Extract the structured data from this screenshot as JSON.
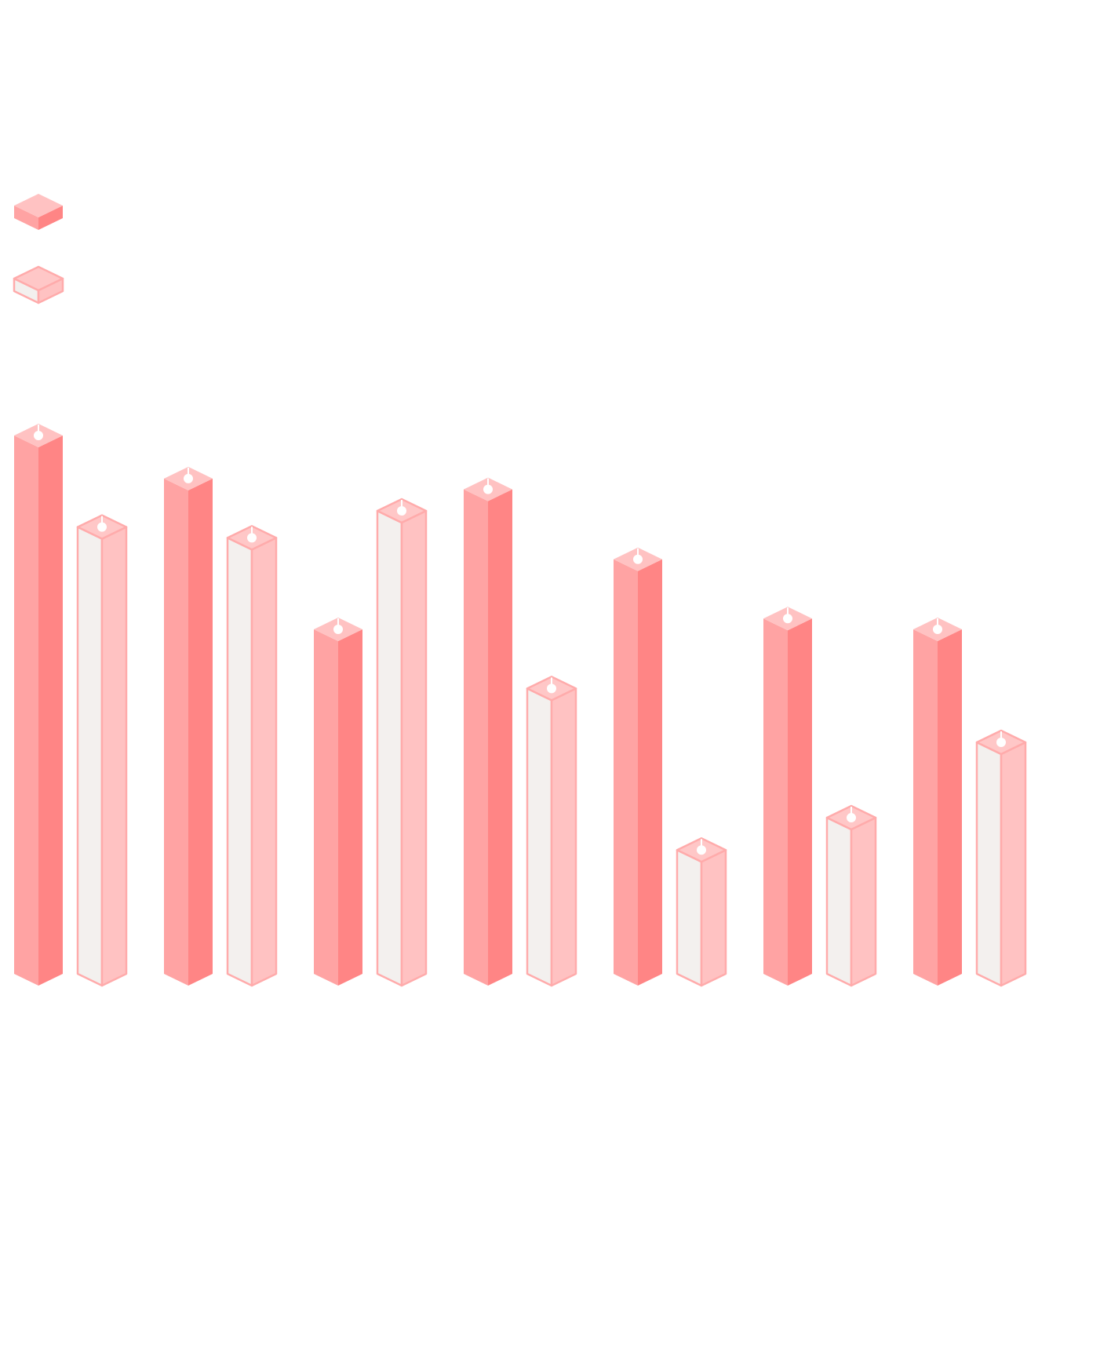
{
  "chart_data": {
    "type": "bar",
    "style": "isometric-3d",
    "title": "",
    "xlabel": "",
    "ylabel": "",
    "categories": [
      "",
      "",
      "",
      "",
      "",
      "",
      ""
    ],
    "ylim": [
      0,
      100
    ],
    "legend_position": "top-left",
    "grid": false,
    "series": [
      {
        "values": [
          100,
          92,
          64,
          90,
          77,
          66,
          64
        ],
        "style": "solid",
        "colors": {
          "top": "#ffc2c2",
          "left": "#ffa3a3",
          "right": "#ff8585"
        }
      },
      {
        "values": [
          83,
          81,
          86,
          53,
          23,
          29,
          43
        ],
        "style": "outlined",
        "colors": {
          "top": "#ffc7c7",
          "left": "#f3f0ee",
          "right": "#ffc2c2",
          "stroke": "#ffabab"
        }
      }
    ],
    "marker_color": "#ffffff"
  }
}
